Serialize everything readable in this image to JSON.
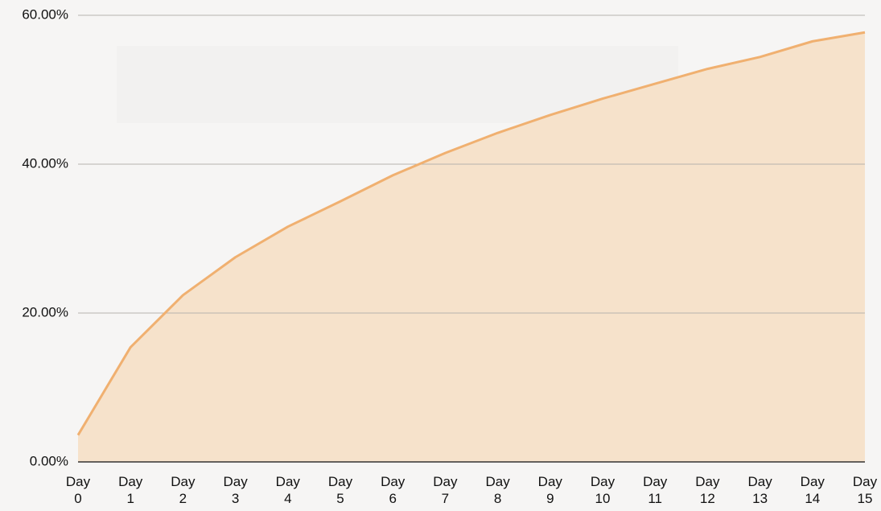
{
  "chart_data": {
    "type": "area",
    "categories": [
      "Day 0",
      "Day 1",
      "Day 2",
      "Day 3",
      "Day 4",
      "Day 5",
      "Day 6",
      "Day 7",
      "Day 8",
      "Day 9",
      "Day 10",
      "Day 11",
      "Day 12",
      "Day 13",
      "Day 14",
      "Day 15"
    ],
    "values": [
      3.6,
      15.4,
      22.4,
      27.5,
      31.6,
      35.0,
      38.5,
      41.5,
      44.2,
      46.6,
      48.8,
      50.8,
      52.8,
      54.4,
      56.5,
      57.7
    ],
    "color": "#f0b070",
    "fill_color": "#f5e0c8",
    "ylim": [
      0,
      60
    ],
    "yticks": [
      {
        "value": 0,
        "label": "0.00%"
      },
      {
        "value": 20,
        "label": "20.00%"
      },
      {
        "value": 40,
        "label": "40.00%"
      },
      {
        "value": 60,
        "label": "60.00%"
      }
    ],
    "grid": true
  }
}
